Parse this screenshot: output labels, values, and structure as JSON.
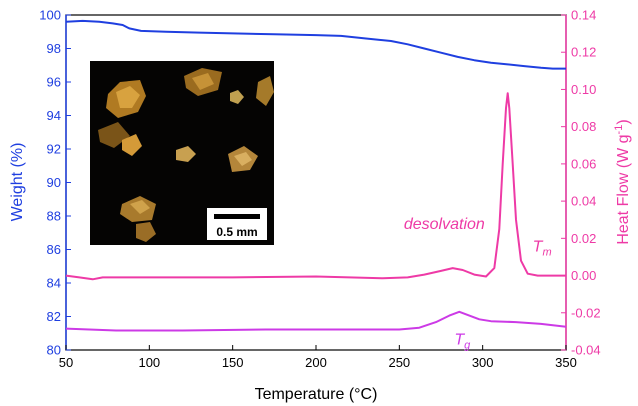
{
  "chart_data": {
    "type": "line",
    "xlabel": "Temperature (°C)",
    "ylabel_left": "Weight (%)",
    "ylabel_right": "Heat Flow (W g",
    "ylabel_right_sup": "-1",
    "ylabel_right_close": ")",
    "xlim": [
      50,
      350
    ],
    "ylim_left": [
      80,
      100
    ],
    "ylim_right": [
      -0.04,
      0.14
    ],
    "x_ticks": [
      50,
      100,
      150,
      200,
      250,
      300,
      350
    ],
    "y_left_ticks": [
      80,
      82,
      84,
      86,
      88,
      90,
      92,
      94,
      96,
      98,
      100
    ],
    "y_right_ticks": [
      -0.04,
      -0.02,
      0.0,
      0.02,
      0.04,
      0.06,
      0.08,
      0.1,
      0.12,
      0.14
    ],
    "y_right_tick_labels": [
      "-0.04",
      "-0.02",
      "0.00",
      "0.02",
      "0.04",
      "0.06",
      "0.08",
      "0.10",
      "0.12",
      "0.14"
    ],
    "colors": {
      "weight": "#1f3fe0",
      "heat_flow": "#ee3aa6",
      "second_scan": "#cc3ae6",
      "left_axis": "#1f3fe0",
      "right_axis": "#ee3aa6"
    },
    "series": [
      {
        "axis": "left",
        "color": "#1f3fe0",
        "x": [
          50,
          60,
          70,
          78,
          84,
          88,
          95,
          110,
          130,
          150,
          175,
          200,
          215,
          230,
          245,
          255,
          265,
          275,
          285,
          295,
          305,
          315,
          325,
          335,
          342,
          350
        ],
        "y": [
          99.6,
          99.65,
          99.6,
          99.5,
          99.4,
          99.2,
          99.05,
          99.0,
          98.95,
          98.9,
          98.85,
          98.8,
          98.75,
          98.6,
          98.45,
          98.25,
          98.0,
          97.75,
          97.5,
          97.3,
          97.15,
          97.05,
          96.95,
          96.85,
          96.8,
          96.8
        ]
      },
      {
        "axis": "right",
        "color": "#ee3aa6",
        "x": [
          50,
          58,
          66,
          72,
          80,
          100,
          150,
          200,
          220,
          240,
          255,
          265,
          275,
          282,
          288,
          295,
          302,
          307,
          310,
          312,
          314,
          315,
          316,
          318,
          320,
          323,
          327,
          333,
          340,
          350
        ],
        "y": [
          0.0,
          -0.001,
          -0.002,
          -0.001,
          -0.001,
          -0.001,
          -0.001,
          -0.0005,
          -0.001,
          -0.0015,
          -0.001,
          0.0005,
          0.0025,
          0.004,
          0.003,
          0.0005,
          -0.0005,
          0.004,
          0.025,
          0.06,
          0.09,
          0.098,
          0.09,
          0.06,
          0.03,
          0.008,
          0.001,
          0.0,
          0.0,
          0.0
        ]
      },
      {
        "axis": "right",
        "color": "#cc3ae6",
        "x": [
          50,
          80,
          120,
          170,
          220,
          250,
          262,
          272,
          280,
          286,
          292,
          298,
          305,
          320,
          335,
          350
        ],
        "y": [
          -0.0285,
          -0.0295,
          -0.0295,
          -0.029,
          -0.029,
          -0.029,
          -0.028,
          -0.025,
          -0.0215,
          -0.0195,
          -0.0215,
          -0.0235,
          -0.0245,
          -0.025,
          -0.026,
          -0.0275
        ]
      }
    ],
    "annotations": [
      {
        "text": "desolvation",
        "x": 277,
        "y": 0.025,
        "color": "#ee3aa6"
      },
      {
        "text": "T",
        "sub": "m",
        "x": 330,
        "y": 0.013,
        "color": "#ee3aa6"
      },
      {
        "text": "T",
        "sub": "g",
        "x": 283,
        "y": -0.037,
        "color": "#cc3ae6"
      }
    ],
    "inset": {
      "scale_label": "0.5 mm"
    }
  }
}
